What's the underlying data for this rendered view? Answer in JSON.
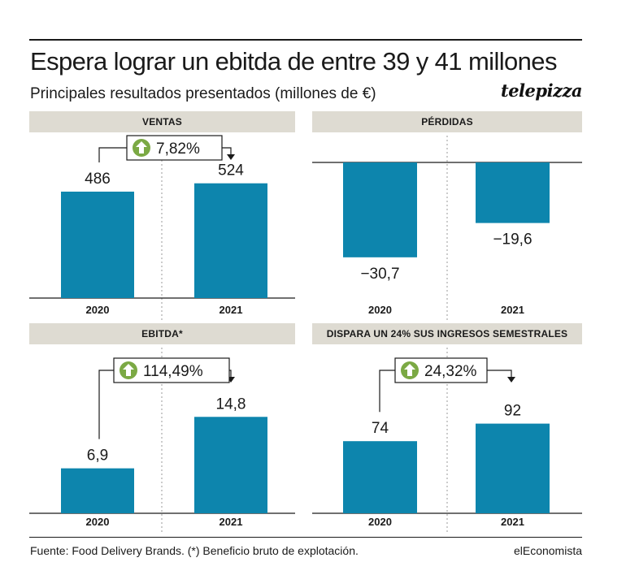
{
  "title": "Espera lograr un ebitda de entre 39 y 41 millones",
  "subtitle": "Principales resultados presentados (millones de €)",
  "logo_text": "telepizza",
  "source": "Fuente: Food Delivery Brands. (*) Beneficio bruto de explotación.",
  "credit": "elEconomista",
  "colors": {
    "bar": "#0d85ad",
    "header_bg": "#dedbd2",
    "arrow_circle": "#7ba944"
  },
  "chart_data": [
    {
      "type": "bar",
      "title": "VENTAS",
      "categories": [
        "2020",
        "2021"
      ],
      "values": [
        486,
        524
      ],
      "value_labels": [
        "486",
        "524"
      ],
      "ylim": [
        0,
        560
      ],
      "change_label": "7,82%",
      "change_direction": "up"
    },
    {
      "type": "bar",
      "title": "PÉRDIDAS",
      "categories": [
        "2020",
        "2021"
      ],
      "values": [
        -30.7,
        -19.6
      ],
      "value_labels": [
        "−30,7",
        "−19,6"
      ],
      "ylim": [
        -36,
        0
      ]
    },
    {
      "type": "bar",
      "title": "EBITDA*",
      "categories": [
        "2020",
        "2021"
      ],
      "values": [
        6.9,
        14.8
      ],
      "value_labels": [
        "6,9",
        "14,8"
      ],
      "ylim": [
        0,
        18.7
      ],
      "change_label": "114,49%",
      "change_direction": "up"
    },
    {
      "type": "bar",
      "title": "DISPARA UN 24% SUS INGRESOS SEMESTRALES",
      "categories": [
        "2020",
        "2021"
      ],
      "values": [
        74,
        92
      ],
      "value_labels": [
        "74",
        "92"
      ],
      "ylim": [
        0,
        125
      ],
      "change_label": "24,32%",
      "change_direction": "up"
    }
  ]
}
